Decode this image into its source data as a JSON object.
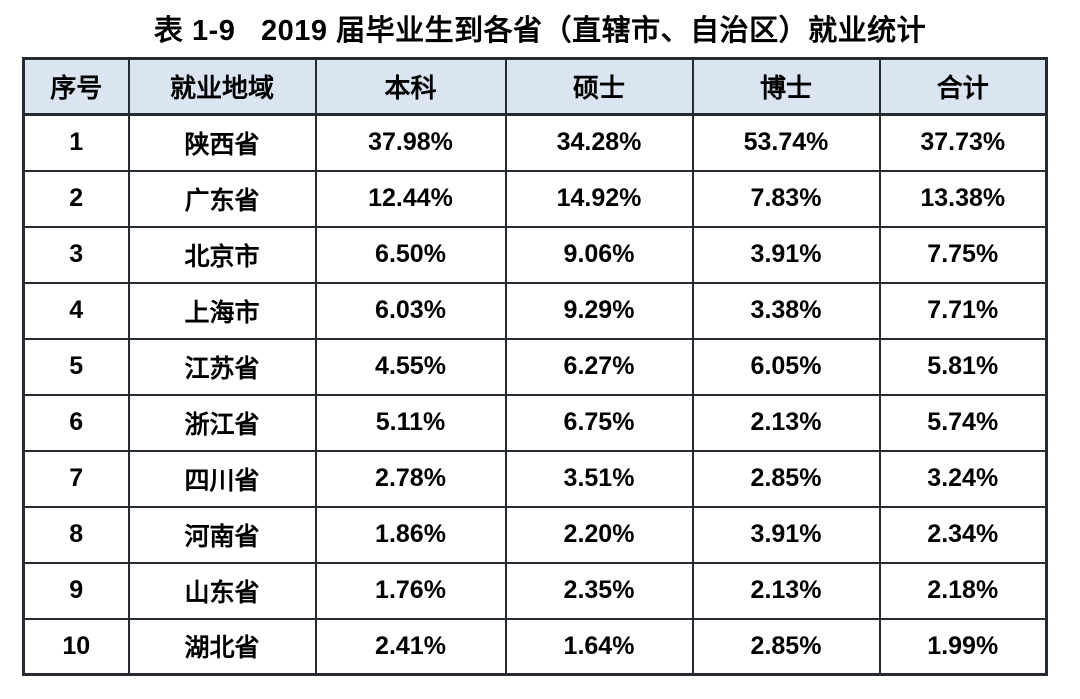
{
  "title": "表 1-9   2019 届毕业生到各省（直辖市、自治区）就业统计",
  "colors": {
    "page_bg": "#ffffff",
    "header_bg": "#dbe5f1",
    "border_color": "#262b33",
    "text_color": "#000000"
  },
  "table": {
    "columns": [
      "序号",
      "就业地域",
      "本科",
      "硕士",
      "博士",
      "合计"
    ],
    "rows": [
      [
        "1",
        "陕西省",
        "37.98%",
        "34.28%",
        "53.74%",
        "37.73%"
      ],
      [
        "2",
        "广东省",
        "12.44%",
        "14.92%",
        "7.83%",
        "13.38%"
      ],
      [
        "3",
        "北京市",
        "6.50%",
        "9.06%",
        "3.91%",
        "7.75%"
      ],
      [
        "4",
        "上海市",
        "6.03%",
        "9.29%",
        "3.38%",
        "7.71%"
      ],
      [
        "5",
        "江苏省",
        "4.55%",
        "6.27%",
        "6.05%",
        "5.81%"
      ],
      [
        "6",
        "浙江省",
        "5.11%",
        "6.75%",
        "2.13%",
        "5.74%"
      ],
      [
        "7",
        "四川省",
        "2.78%",
        "3.51%",
        "2.85%",
        "3.24%"
      ],
      [
        "8",
        "河南省",
        "1.86%",
        "2.20%",
        "3.91%",
        "2.34%"
      ],
      [
        "9",
        "山东省",
        "1.76%",
        "2.35%",
        "2.13%",
        "2.18%"
      ],
      [
        "10",
        "湖北省",
        "2.41%",
        "1.64%",
        "2.85%",
        "1.99%"
      ]
    ]
  }
}
